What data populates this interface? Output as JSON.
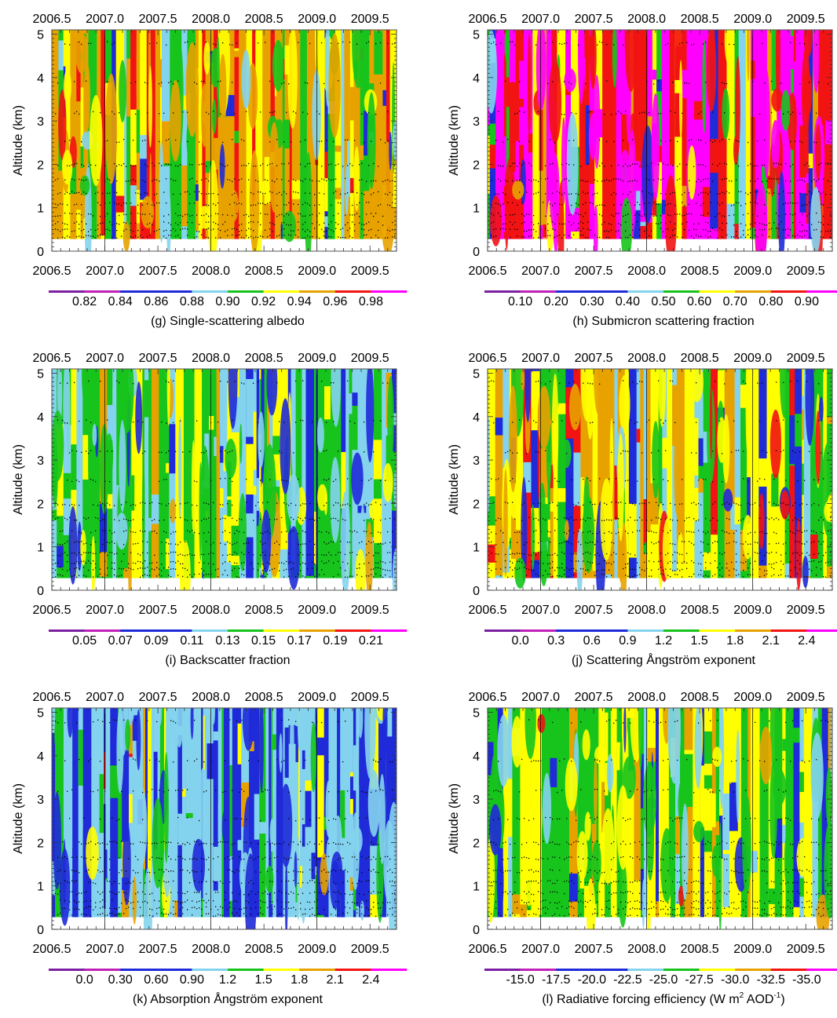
{
  "colors": {
    "purple": "#7a1fa2",
    "violet": "#c01fb8",
    "darkblue": "#1f2ad8",
    "lightblue": "#84d3ee",
    "green": "#16c41c",
    "yellow": "#ffff00",
    "orange": "#e8a200",
    "red": "#f21313",
    "magenta": "#ff00ff"
  },
  "chart_data": [
    {
      "id": "g",
      "type": "heatmap",
      "caption": "(g) Single-scattering albedo",
      "ylabel": "Altitude (km)",
      "xlim": [
        2006.5,
        2009.75
      ],
      "ylim": [
        0,
        5.1
      ],
      "x_ticks": [
        "2006.5",
        "2007.0",
        "2007.5",
        "2008.0",
        "2008.5",
        "2009.0",
        "2009.5"
      ],
      "y_ticks": [
        "0",
        "1",
        "2",
        "3",
        "4",
        "5"
      ],
      "colorbar_labels": [
        "0.82",
        "0.84",
        "0.86",
        "0.88",
        "0.90",
        "0.92",
        "0.94",
        "0.96",
        "0.98"
      ],
      "colorbar_colors": [
        "purple",
        "violet",
        "darkblue",
        "darkblue",
        "lightblue",
        "green",
        "yellow",
        "orange",
        "red",
        "magenta"
      ],
      "palette": [
        "orange",
        "yellow",
        "green",
        "lightblue",
        "darkblue",
        "red"
      ],
      "weights": [
        38,
        22,
        16,
        10,
        6,
        8
      ]
    },
    {
      "id": "h",
      "type": "heatmap",
      "caption": "(h) Submicron scattering fraction",
      "ylabel": "Altitude (km)",
      "xlim": [
        2006.5,
        2009.75
      ],
      "ylim": [
        0,
        5.1
      ],
      "x_ticks": [
        "2006.5",
        "2007.0",
        "2007.5",
        "2008.0",
        "2008.5",
        "2009.0",
        "2009.5"
      ],
      "y_ticks": [
        "0",
        "1",
        "2",
        "3",
        "4",
        "5"
      ],
      "colorbar_labels": [
        "0.10",
        "0.20",
        "0.30",
        "0.40",
        "0.50",
        "0.60",
        "0.70",
        "0.80",
        "0.90"
      ],
      "colorbar_colors": [
        "purple",
        "violet",
        "darkblue",
        "darkblue",
        "lightblue",
        "green",
        "yellow",
        "orange",
        "red",
        "magenta"
      ],
      "palette": [
        "magenta",
        "red",
        "orange",
        "yellow",
        "green",
        "lightblue",
        "darkblue"
      ],
      "weights": [
        40,
        30,
        6,
        6,
        6,
        6,
        6
      ]
    },
    {
      "id": "i",
      "type": "heatmap",
      "caption": "(i) Backscatter fraction",
      "ylabel": "Altitude (km)",
      "xlim": [
        2006.5,
        2009.75
      ],
      "ylim": [
        0,
        5.1
      ],
      "x_ticks": [
        "2006.5",
        "2007.0",
        "2007.5",
        "2008.0",
        "2008.5",
        "2009.0",
        "2009.5"
      ],
      "y_ticks": [
        "0",
        "1",
        "2",
        "3",
        "4",
        "5"
      ],
      "colorbar_labels": [
        "0.05",
        "0.07",
        "0.09",
        "0.11",
        "0.13",
        "0.15",
        "0.17",
        "0.19",
        "0.21"
      ],
      "colorbar_colors": [
        "purple",
        "violet",
        "darkblue",
        "darkblue",
        "lightblue",
        "green",
        "yellow",
        "orange",
        "red",
        "magenta"
      ],
      "palette": [
        "green",
        "lightblue",
        "yellow",
        "darkblue",
        "orange"
      ],
      "weights": [
        38,
        30,
        16,
        12,
        4
      ]
    },
    {
      "id": "j",
      "type": "heatmap",
      "caption": "(j) Scattering Ångström exponent",
      "ylabel": "Altitude (km)",
      "xlim": [
        2006.5,
        2009.75
      ],
      "ylim": [
        0,
        5.1
      ],
      "x_ticks": [
        "2006.5",
        "2007.0",
        "2007.5",
        "2008.0",
        "2008.5",
        "2009.0",
        "2009.5"
      ],
      "y_ticks": [
        "0",
        "1",
        "2",
        "3",
        "4",
        "5"
      ],
      "colorbar_labels": [
        "0.0",
        "0.3",
        "0.6",
        "0.9",
        "1.2",
        "1.5",
        "1.8",
        "2.1",
        "2.4"
      ],
      "colorbar_colors": [
        "purple",
        "violet",
        "darkblue",
        "darkblue",
        "lightblue",
        "green",
        "yellow",
        "orange",
        "red",
        "magenta"
      ],
      "palette": [
        "yellow",
        "green",
        "orange",
        "red",
        "lightblue",
        "darkblue"
      ],
      "weights": [
        30,
        22,
        18,
        14,
        8,
        8
      ]
    },
    {
      "id": "k",
      "type": "heatmap",
      "caption": "(k) Absorption Ångström exponent",
      "ylabel": "Altitude (km)",
      "xlim": [
        2006.5,
        2009.75
      ],
      "ylim": [
        0,
        5.1
      ],
      "x_ticks": [
        "2006.5",
        "2007.0",
        "2007.5",
        "2008.0",
        "2008.5",
        "2009.0",
        "2009.5"
      ],
      "y_ticks": [
        "0",
        "1",
        "2",
        "3",
        "4",
        "5"
      ],
      "colorbar_labels": [
        "0.0",
        "0.30",
        "0.60",
        "0.90",
        "1.2",
        "1.5",
        "1.8",
        "2.1",
        "2.4"
      ],
      "colorbar_colors": [
        "purple",
        "violet",
        "darkblue",
        "darkblue",
        "lightblue",
        "green",
        "yellow",
        "orange",
        "red",
        "magenta"
      ],
      "palette": [
        "lightblue",
        "darkblue",
        "green",
        "yellow",
        "orange",
        "red"
      ],
      "weights": [
        46,
        30,
        12,
        6,
        4,
        2
      ]
    },
    {
      "id": "l",
      "type": "heatmap",
      "caption": "(l) Radiative forcing efficiency (W m",
      "caption_sup1": "2",
      "caption_mid": " AOD",
      "caption_sup2": "-1",
      "caption_end": ")",
      "ylabel": "Altitude (km)",
      "xlim": [
        2006.5,
        2009.75
      ],
      "ylim": [
        0,
        5.1
      ],
      "x_ticks": [
        "2006.5",
        "2007.0",
        "2007.5",
        "2008.0",
        "2008.5",
        "2009.0",
        "2009.5"
      ],
      "y_ticks": [
        "0",
        "1",
        "2",
        "3",
        "4",
        "5"
      ],
      "colorbar_labels": [
        "-15.0",
        "-17.5",
        "-20.0",
        "-22.5",
        "-25.0",
        "-27.5",
        "-30.0",
        "-32.5",
        "-35.0"
      ],
      "colorbar_colors": [
        "purple",
        "violet",
        "darkblue",
        "darkblue",
        "lightblue",
        "green",
        "yellow",
        "orange",
        "red",
        "magenta"
      ],
      "palette": [
        "green",
        "yellow",
        "lightblue",
        "darkblue",
        "orange",
        "red"
      ],
      "weights": [
        36,
        30,
        14,
        10,
        7,
        3
      ]
    }
  ]
}
